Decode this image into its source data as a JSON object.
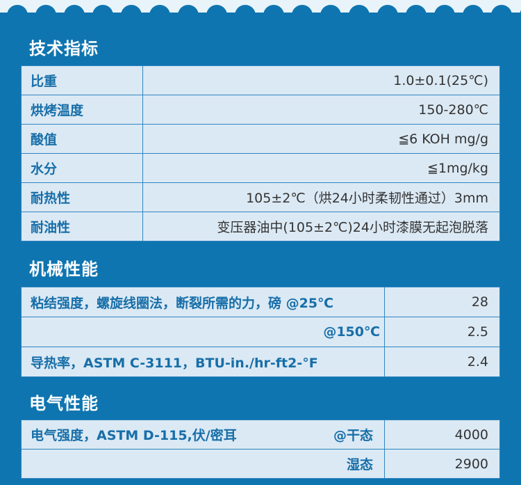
{
  "colors": {
    "background": "#0f75b0",
    "table": "#dbe9f4",
    "label": "#176ea8"
  },
  "tech": {
    "title": "技术指标",
    "rows": [
      {
        "label": "比重",
        "value": "1.0±0.1(25℃)"
      },
      {
        "label": "烘烤温度",
        "value": "150-280℃"
      },
      {
        "label": "酸值",
        "value": "≦6 KOH mg/g"
      },
      {
        "label": "水分",
        "value": "≦1mg/kg"
      },
      {
        "label": "耐热性",
        "value": "105±2℃（烘24小时柔韧性通过）3mm"
      },
      {
        "label": "耐油性",
        "value": "变压器油中(105±2℃)24小时漆膜无起泡脱落"
      }
    ]
  },
  "mech": {
    "title": "机械性能",
    "rows": [
      {
        "label": "粘结强度，螺旋线圈法，断裂所需的力，磅 @25℃",
        "value": "28"
      },
      {
        "label": "@150℃",
        "value": "2.5"
      },
      {
        "label": "导热率，ASTM C-3111，BTU-in./hr-ft2-°F",
        "value": "2.4"
      }
    ]
  },
  "elec": {
    "title": "电气性能",
    "rows": [
      {
        "label": "电气强度，ASTM D-115,伏/密耳",
        "cond": "@干态",
        "value": "4000"
      },
      {
        "label": "",
        "cond": "湿态",
        "value": "2900"
      }
    ]
  }
}
